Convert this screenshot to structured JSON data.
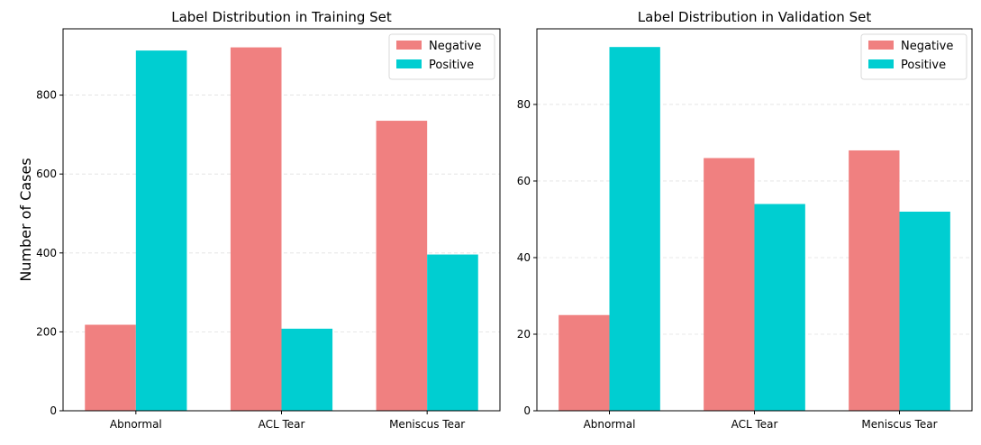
{
  "colors": {
    "negative": "#F08080",
    "positive": "#00CED1"
  },
  "ylabel": "Number of Cases",
  "chart_data": [
    {
      "type": "bar",
      "title": "Label Distribution in Training Set",
      "xlabel": "",
      "ylabel": "Number of Cases",
      "categories": [
        "Abnormal",
        "ACL Tear",
        "Meniscus Tear"
      ],
      "series": [
        {
          "name": "Negative",
          "values": [
            218,
            921,
            735
          ]
        },
        {
          "name": "Positive",
          "values": [
            913,
            208,
            396
          ]
        }
      ],
      "yticks": [
        0,
        200,
        400,
        600,
        800
      ],
      "ylim": [
        0,
        968
      ],
      "grid": "y-dashed",
      "legend": "top-right"
    },
    {
      "type": "bar",
      "title": "Label Distribution in Validation Set",
      "xlabel": "",
      "ylabel": "",
      "categories": [
        "Abnormal",
        "ACL Tear",
        "Meniscus Tear"
      ],
      "series": [
        {
          "name": "Negative",
          "values": [
            25,
            66,
            68
          ]
        },
        {
          "name": "Positive",
          "values": [
            95,
            54,
            52
          ]
        }
      ],
      "yticks": [
        0,
        20,
        40,
        60,
        80
      ],
      "ylim": [
        0,
        99.75
      ],
      "grid": "y-dashed",
      "legend": "top-right"
    }
  ]
}
